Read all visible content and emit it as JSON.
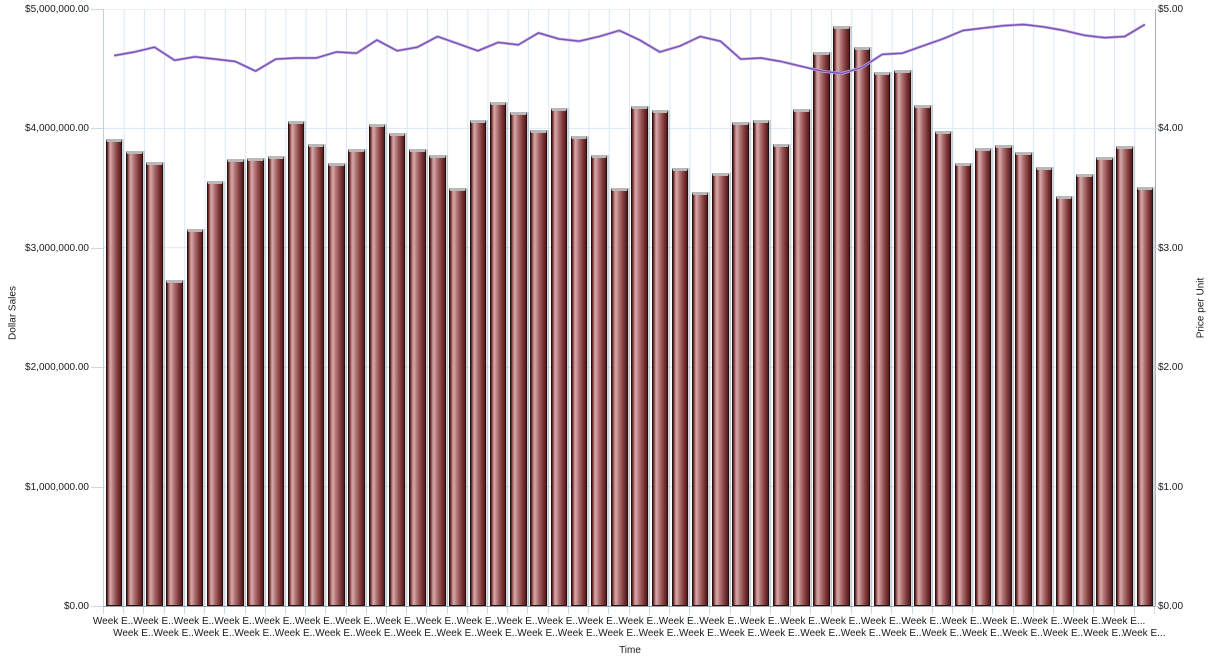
{
  "chart_data": {
    "type": "bar",
    "subtype": "bar-line-combo",
    "title": "",
    "xlabel": "Time",
    "categories": [
      "Week E..",
      "Week E..",
      "Week E..",
      "Week E..",
      "Week E..",
      "Week E..",
      "Week E..",
      "Week E..",
      "Week E..",
      "Week E..",
      "Week E..",
      "Week E..",
      "Week E..",
      "Week E..",
      "Week E..",
      "Week E..",
      "Week E..",
      "Week E..",
      "Week E..",
      "Week E..",
      "Week E..",
      "Week E..",
      "Week E..",
      "Week E..",
      "Week E..",
      "Week E..",
      "Week E..",
      "Week E..",
      "Week E..",
      "Week E..",
      "Week E..",
      "Week E..",
      "Week E..",
      "Week E..",
      "Week E..",
      "Week E..",
      "Week E..",
      "Week E..",
      "Week E..",
      "Week E..",
      "Week E..",
      "Week E..",
      "Week E..",
      "Week E..",
      "Week E..",
      "Week E..",
      "Week E..",
      "Week E..",
      "Week E..",
      "Week E..",
      "Week E...",
      "Week E..."
    ],
    "series": [
      {
        "name": "Dollar Sales",
        "type": "bar",
        "axis": "left",
        "values": [
          3910000,
          3810000,
          3720000,
          2730000,
          3160000,
          3560000,
          3740000,
          3750000,
          3770000,
          4060000,
          3870000,
          3710000,
          3830000,
          4040000,
          3960000,
          3830000,
          3780000,
          3500000,
          4070000,
          4220000,
          4140000,
          3990000,
          4170000,
          3940000,
          3780000,
          3500000,
          4190000,
          4150000,
          3670000,
          3470000,
          3630000,
          4050000,
          4070000,
          3870000,
          4160000,
          4640000,
          4860000,
          4680000,
          4470000,
          4490000,
          4200000,
          3980000,
          3710000,
          3840000,
          3860000,
          3800000,
          3680000,
          3430000,
          3620000,
          3760000,
          3850000,
          3510000
        ]
      },
      {
        "name": "Price per Unit",
        "type": "line",
        "axis": "right",
        "values": [
          4.61,
          4.64,
          4.68,
          4.57,
          4.6,
          4.58,
          4.56,
          4.48,
          4.58,
          4.59,
          4.59,
          4.64,
          4.63,
          4.74,
          4.65,
          4.68,
          4.77,
          4.71,
          4.65,
          4.72,
          4.7,
          4.8,
          4.75,
          4.73,
          4.77,
          4.82,
          4.74,
          4.64,
          4.69,
          4.77,
          4.73,
          4.58,
          4.59,
          4.56,
          4.52,
          4.48,
          4.46,
          4.51,
          4.62,
          4.63,
          4.69,
          4.75,
          4.82,
          4.84,
          4.86,
          4.87,
          4.85,
          4.82,
          4.78,
          4.76,
          4.77,
          4.87
        ]
      }
    ],
    "left_axis": {
      "label": "Dollar Sales",
      "range": [
        0,
        5000000
      ],
      "tick_labels": [
        "$0.00",
        "$1,000,000.00",
        "$2,000,000.00",
        "$3,000,000.00",
        "$4,000,000.00",
        "$5,000,000.00"
      ]
    },
    "right_axis": {
      "label": "Price per Unit",
      "range": [
        0,
        5
      ],
      "tick_labels": [
        "$0.00",
        "$1.00",
        "$2.00",
        "$3.00",
        "$4.00",
        "$5.00"
      ]
    },
    "grid": true,
    "legend_position": "none",
    "colors": {
      "bar_dark": "#541818",
      "bar_light": "#d3a6a6",
      "bar_border": "#201313",
      "line": "#7b52b8",
      "line_highlight": "#c2ace0",
      "grid": "#dbe7f3",
      "tick": "#c7d9ea",
      "axis": "#99a2aa",
      "text": "#1a1a1a",
      "background": "#ffffff"
    }
  }
}
